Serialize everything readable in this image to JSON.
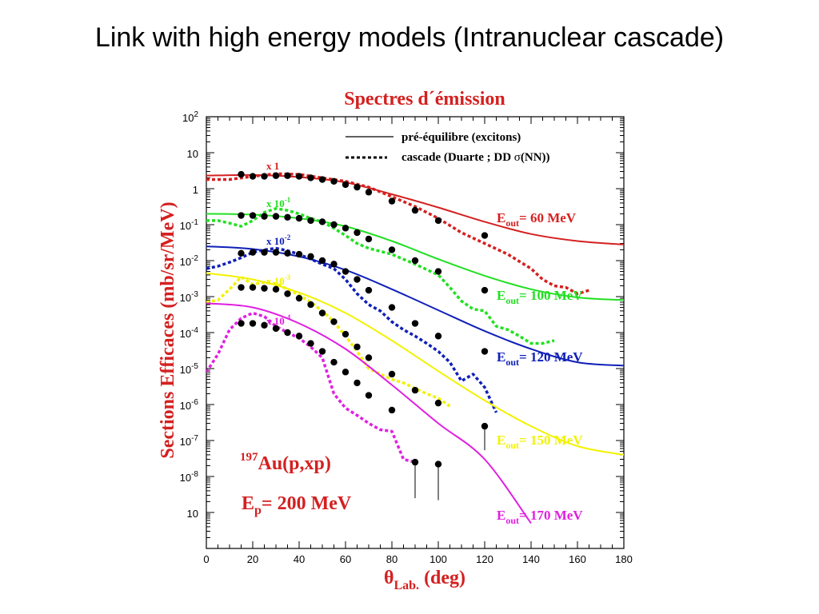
{
  "page": {
    "title": "Link with high energy models (Intranuclear cascade)"
  },
  "colors": {
    "red": "#d42020",
    "green": "#22e022",
    "blue": "#1020b8",
    "yellow": "#f2f200",
    "magenta": "#e020e0",
    "axis": "#000000"
  },
  "chart_data": {
    "type": "line",
    "title": "Spectres d´émission",
    "xlabel": "θLab. (deg)",
    "ylabel": "Sections Efficaces (mb/sr/MeV)",
    "xlim": [
      0,
      180
    ],
    "ylim": [
      1e-10,
      100
    ],
    "yscale": "log",
    "grid": false,
    "x_ticks": [
      "0",
      "20",
      "40",
      "60",
      "80",
      "100",
      "120",
      "140",
      "160",
      "180"
    ],
    "y_ticks": [
      {
        "base": "10",
        "exp": "2"
      },
      {
        "base": "10",
        "exp": ""
      },
      {
        "base": "1",
        "exp": ""
      },
      {
        "base": "10",
        "exp": "-1"
      },
      {
        "base": "10",
        "exp": "-2"
      },
      {
        "base": "10",
        "exp": "-3"
      },
      {
        "base": "10",
        "exp": "-4"
      },
      {
        "base": "10",
        "exp": "-5"
      },
      {
        "base": "10",
        "exp": "-6"
      },
      {
        "base": "10",
        "exp": "-7"
      },
      {
        "base": "10",
        "exp": "-8"
      },
      {
        "base": "10",
        "exp": ""
      }
    ],
    "legend": {
      "position": "top-right",
      "solid": "pré-équilibre (excitons)",
      "dotted_a": "cascade (Duarte ;  DD ",
      "dotted_sigma": "σ",
      "dotted_b": "(NN))"
    },
    "reaction": {
      "mass": "197",
      "text": "Au(p,xp)"
    },
    "beam": {
      "e": "E",
      "sub": "p",
      "rest": "= 200 MeV"
    },
    "series": [
      {
        "key": "e60",
        "color": "red",
        "scale_label": "x 1",
        "label_e": "E",
        "label_sub": "out",
        "label_rest": "= 60 MeV",
        "points": [
          [
            15,
            2.5
          ],
          [
            20,
            2.2
          ],
          [
            25,
            2.2
          ],
          [
            30,
            2.3
          ],
          [
            35,
            2.3
          ],
          [
            40,
            2.2
          ],
          [
            45,
            2.0
          ],
          [
            50,
            1.8
          ],
          [
            55,
            1.6
          ],
          [
            60,
            1.3
          ],
          [
            65,
            1.1
          ],
          [
            70,
            0.8
          ],
          [
            80,
            0.45
          ],
          [
            90,
            0.25
          ],
          [
            100,
            0.13
          ],
          [
            120,
            0.05
          ]
        ],
        "preeq": [
          [
            0,
            2.3
          ],
          [
            20,
            2.4
          ],
          [
            40,
            2.1
          ],
          [
            60,
            1.5
          ],
          [
            80,
            0.7
          ],
          [
            100,
            0.3
          ],
          [
            120,
            0.12
          ],
          [
            140,
            0.055
          ],
          [
            160,
            0.035
          ],
          [
            180,
            0.028
          ]
        ],
        "cascade": [
          [
            0,
            1.8
          ],
          [
            10,
            1.8
          ],
          [
            20,
            2.2
          ],
          [
            30,
            2.6
          ],
          [
            40,
            2.5
          ],
          [
            50,
            2.0
          ],
          [
            60,
            1.6
          ],
          [
            70,
            1.1
          ],
          [
            80,
            0.6
          ],
          [
            90,
            0.32
          ],
          [
            100,
            0.15
          ],
          [
            110,
            0.06
          ],
          [
            120,
            0.03
          ],
          [
            130,
            0.015
          ],
          [
            140,
            0.006
          ],
          [
            145,
            0.003
          ],
          [
            150,
            0.002
          ],
          [
            155,
            0.0018
          ],
          [
            160,
            0.0012
          ],
          [
            165,
            0.0015
          ]
        ]
      },
      {
        "key": "e100",
        "color": "green",
        "scale_label_base": "x 10",
        "scale_label_exp": "-1",
        "label_e": "E",
        "label_sub": "out",
        "label_rest": "= 100 MeV",
        "points": [
          [
            15,
            0.18
          ],
          [
            20,
            0.18
          ],
          [
            25,
            0.17
          ],
          [
            30,
            0.17
          ],
          [
            35,
            0.16
          ],
          [
            40,
            0.15
          ],
          [
            45,
            0.13
          ],
          [
            50,
            0.12
          ],
          [
            55,
            0.1
          ],
          [
            60,
            0.08
          ],
          [
            65,
            0.06
          ],
          [
            70,
            0.04
          ],
          [
            80,
            0.02
          ],
          [
            90,
            0.01
          ],
          [
            100,
            0.005
          ],
          [
            120,
            0.0015
          ]
        ],
        "preeq": [
          [
            0,
            0.2
          ],
          [
            20,
            0.19
          ],
          [
            40,
            0.15
          ],
          [
            60,
            0.09
          ],
          [
            80,
            0.035
          ],
          [
            100,
            0.011
          ],
          [
            120,
            0.0038
          ],
          [
            140,
            0.0016
          ],
          [
            160,
            0.00095
          ],
          [
            180,
            0.0008
          ]
        ],
        "cascade": [
          [
            0,
            0.13
          ],
          [
            5,
            0.13
          ],
          [
            10,
            0.11
          ],
          [
            15,
            0.09
          ],
          [
            20,
            0.13
          ],
          [
            25,
            0.22
          ],
          [
            30,
            0.28
          ],
          [
            35,
            0.25
          ],
          [
            40,
            0.2
          ],
          [
            45,
            0.15
          ],
          [
            50,
            0.12
          ],
          [
            55,
            0.08
          ],
          [
            60,
            0.05
          ],
          [
            65,
            0.03
          ],
          [
            70,
            0.022
          ],
          [
            80,
            0.015
          ],
          [
            90,
            0.008
          ],
          [
            100,
            0.004
          ],
          [
            105,
            0.0018
          ],
          [
            110,
            0.00075
          ],
          [
            115,
            0.00045
          ],
          [
            120,
            0.0004
          ],
          [
            125,
            0.00015
          ],
          [
            130,
            0.00012
          ],
          [
            135,
            8e-05
          ],
          [
            140,
            5e-05
          ],
          [
            145,
            5e-05
          ],
          [
            150,
            6e-05
          ]
        ]
      },
      {
        "key": "e120",
        "color": "blue",
        "scale_label_base": "x 10",
        "scale_label_exp": "-2",
        "label_e": "E",
        "label_sub": "out",
        "label_rest": "= 120 MeV",
        "points": [
          [
            15,
            0.016
          ],
          [
            20,
            0.017
          ],
          [
            25,
            0.017
          ],
          [
            30,
            0.017
          ],
          [
            35,
            0.016
          ],
          [
            40,
            0.015
          ],
          [
            45,
            0.013
          ],
          [
            50,
            0.01
          ],
          [
            55,
            0.008
          ],
          [
            60,
            0.005
          ],
          [
            65,
            0.003
          ],
          [
            70,
            0.0015
          ],
          [
            80,
            0.0005
          ],
          [
            90,
            0.00018
          ],
          [
            100,
            8e-05
          ],
          [
            120,
            3e-05
          ]
        ],
        "preeq": [
          [
            0,
            0.025
          ],
          [
            20,
            0.021
          ],
          [
            40,
            0.013
          ],
          [
            60,
            0.0055
          ],
          [
            80,
            0.0016
          ],
          [
            100,
            0.00042
          ],
          [
            120,
            0.00011
          ],
          [
            140,
            3.5e-05
          ],
          [
            160,
            1.5e-05
          ],
          [
            180,
            1.2e-05
          ]
        ],
        "cascade": [
          [
            0,
            0.006
          ],
          [
            5,
            0.007
          ],
          [
            10,
            0.009
          ],
          [
            15,
            0.012
          ],
          [
            20,
            0.017
          ],
          [
            25,
            0.02
          ],
          [
            30,
            0.022
          ],
          [
            35,
            0.019
          ],
          [
            40,
            0.015
          ],
          [
            45,
            0.011
          ],
          [
            50,
            0.008
          ],
          [
            55,
            0.006
          ],
          [
            60,
            0.003
          ],
          [
            65,
            0.0012
          ],
          [
            70,
            0.0006
          ],
          [
            75,
            0.0004
          ],
          [
            80,
            0.0002
          ],
          [
            85,
            0.00012
          ],
          [
            90,
            8e-05
          ],
          [
            95,
            5e-05
          ],
          [
            100,
            3e-05
          ],
          [
            105,
            1.5e-05
          ],
          [
            110,
            4.5e-06
          ],
          [
            115,
            7e-06
          ],
          [
            120,
            3e-06
          ],
          [
            125,
            6e-07
          ]
        ]
      },
      {
        "key": "e150",
        "color": "yellow",
        "scale_label_base": "x 10",
        "scale_label_exp": "-3",
        "label_e": "E",
        "label_sub": "out",
        "label_rest": "= 150 MeV",
        "points": [
          [
            15,
            0.0018
          ],
          [
            20,
            0.0018
          ],
          [
            25,
            0.0017
          ],
          [
            30,
            0.0016
          ],
          [
            35,
            0.0012
          ],
          [
            40,
            0.0009
          ],
          [
            45,
            0.0006
          ],
          [
            50,
            0.00035
          ],
          [
            55,
            0.0002
          ],
          [
            60,
            9e-05
          ],
          [
            65,
            4e-05
          ],
          [
            70,
            2e-05
          ],
          [
            80,
            7e-06
          ],
          [
            90,
            2.5e-06
          ],
          [
            100,
            1.1e-06
          ],
          [
            120,
            2.5e-07
          ]
        ],
        "preeq": [
          [
            0,
            0.0045
          ],
          [
            20,
            0.003
          ],
          [
            40,
            0.0013
          ],
          [
            60,
            0.00035
          ],
          [
            80,
            6e-05
          ],
          [
            100,
            8.5e-06
          ],
          [
            120,
            1.3e-06
          ],
          [
            140,
            2.5e-07
          ],
          [
            160,
            7e-08
          ],
          [
            180,
            4e-08
          ]
        ],
        "cascade": [
          [
            0,
            0.0007
          ],
          [
            5,
            0.0008
          ],
          [
            10,
            0.0016
          ],
          [
            15,
            0.0035
          ],
          [
            20,
            0.0022
          ],
          [
            25,
            0.0025
          ],
          [
            30,
            0.0023
          ],
          [
            35,
            0.0016
          ],
          [
            40,
            0.0011
          ],
          [
            45,
            0.0007
          ],
          [
            50,
            0.0004
          ],
          [
            55,
            0.0002
          ],
          [
            60,
            8e-05
          ],
          [
            65,
            3e-05
          ],
          [
            70,
            1e-05
          ],
          [
            75,
            7e-06
          ],
          [
            80,
            5e-06
          ],
          [
            85,
            4e-06
          ],
          [
            90,
            2.8e-06
          ],
          [
            95,
            2e-06
          ],
          [
            100,
            1.5e-06
          ],
          [
            105,
            9e-07
          ]
        ]
      },
      {
        "key": "e170",
        "color": "magenta",
        "scale_label_base": "x 10",
        "scale_label_exp": "-4",
        "label_e": "E",
        "label_sub": "out",
        "label_rest": "= 170 MeV",
        "points": [
          [
            15,
            0.00018
          ],
          [
            20,
            0.00018
          ],
          [
            25,
            0.00016
          ],
          [
            30,
            0.00013
          ],
          [
            35,
            0.0001
          ],
          [
            40,
            8e-05
          ],
          [
            45,
            5e-05
          ],
          [
            50,
            3e-05
          ],
          [
            55,
            1.5e-05
          ],
          [
            60,
            8e-06
          ],
          [
            65,
            4e-06
          ],
          [
            70,
            1.8e-06
          ],
          [
            80,
            7e-07
          ],
          [
            90,
            2.5e-08
          ],
          [
            100,
            2.2e-08
          ]
        ],
        "preeq": [
          [
            0,
            0.00065
          ],
          [
            20,
            0.0005
          ],
          [
            40,
            0.00018
          ],
          [
            60,
            3.5e-05
          ],
          [
            80,
            3.5e-06
          ],
          [
            100,
            3e-07
          ],
          [
            120,
            3e-08
          ],
          [
            140,
            5e-10
          ]
        ],
        "cascade": [
          [
            0,
            8e-06
          ],
          [
            5,
            2.5e-05
          ],
          [
            10,
            0.00012
          ],
          [
            15,
            0.00025
          ],
          [
            20,
            0.00035
          ],
          [
            25,
            0.00028
          ],
          [
            30,
            0.00015
          ],
          [
            35,
            0.0001
          ],
          [
            40,
            7e-05
          ],
          [
            45,
            4e-05
          ],
          [
            50,
            2e-05
          ],
          [
            55,
            2e-06
          ],
          [
            60,
            8e-07
          ],
          [
            65,
            5e-07
          ],
          [
            70,
            3e-07
          ],
          [
            75,
            2e-07
          ],
          [
            80,
            1.8e-07
          ],
          [
            85,
            3e-08
          ],
          [
            90,
            2.5e-08
          ]
        ]
      }
    ]
  }
}
